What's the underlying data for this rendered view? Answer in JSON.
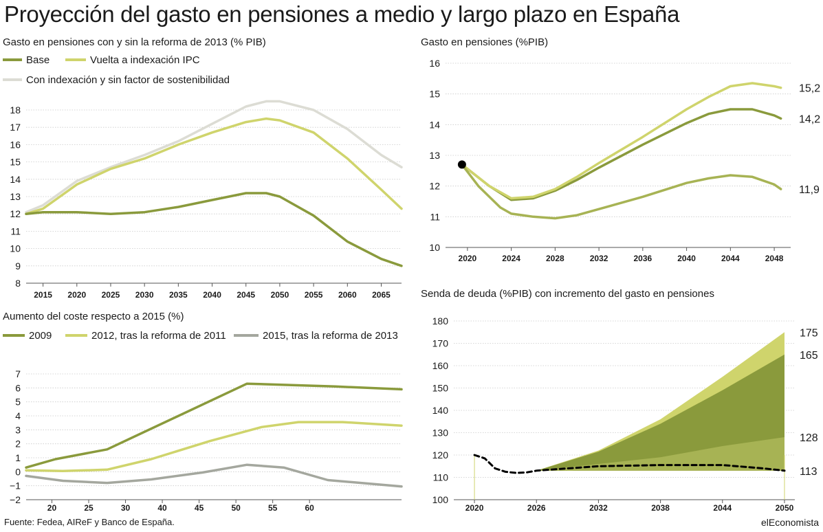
{
  "title": "Proyección del gasto en pensiones a medio y largo plazo en España",
  "source": "Fuente: Fedea, AIReF y Banco de España.",
  "brand": "elEconomista",
  "colors": {
    "dark": "#8a9a3c",
    "light": "#cfd46c",
    "grey": "#dcdcd4",
    "mid": "#a4a79e",
    "black": "#000000"
  },
  "chart_data": [
    {
      "id": "c1",
      "type": "line",
      "title": "Gasto en pensiones con y sin la reforma de 2013 (% PIB)",
      "ylim": [
        8,
        18
      ],
      "xlim": [
        2012.5,
        2068
      ],
      "yticks": [
        "8",
        "9",
        "10",
        "11",
        "12",
        "13",
        "14",
        "15",
        "16",
        "17",
        "18"
      ],
      "xticks": [
        "2015",
        "2020",
        "2025",
        "2030",
        "2035",
        "2040",
        "2045",
        "2050",
        "2055",
        "2060",
        "2065"
      ],
      "legend": [
        "Base",
        "Vuelta a indexación IPC",
        "Con indexación y sin factor de sostenibilidad"
      ],
      "series": [
        {
          "name": "Con indexación y sin factor de sostenibilidad",
          "color": "#dcdcd4",
          "points": [
            [
              2012.5,
              12.1
            ],
            [
              2015,
              12.5
            ],
            [
              2020,
              13.9
            ],
            [
              2025,
              14.7
            ],
            [
              2030,
              15.4
            ],
            [
              2035,
              16.2
            ],
            [
              2040,
              17.2
            ],
            [
              2045,
              18.2
            ],
            [
              2048,
              18.5
            ],
            [
              2050,
              18.5
            ],
            [
              2055,
              18.0
            ],
            [
              2060,
              16.9
            ],
            [
              2065,
              15.4
            ],
            [
              2068,
              14.7
            ]
          ]
        },
        {
          "name": "Vuelta a indexación IPC",
          "color": "#cfd46c",
          "points": [
            [
              2012.5,
              12.0
            ],
            [
              2015,
              12.3
            ],
            [
              2020,
              13.7
            ],
            [
              2025,
              14.6
            ],
            [
              2030,
              15.2
            ],
            [
              2035,
              16.0
            ],
            [
              2040,
              16.7
            ],
            [
              2045,
              17.3
            ],
            [
              2048,
              17.5
            ],
            [
              2050,
              17.4
            ],
            [
              2055,
              16.7
            ],
            [
              2060,
              15.2
            ],
            [
              2065,
              13.4
            ],
            [
              2068,
              12.3
            ]
          ]
        },
        {
          "name": "Base",
          "color": "#8a9a3c",
          "points": [
            [
              2012.5,
              12.0
            ],
            [
              2015,
              12.1
            ],
            [
              2020,
              12.1
            ],
            [
              2025,
              12.0
            ],
            [
              2030,
              12.1
            ],
            [
              2035,
              12.4
            ],
            [
              2040,
              12.8
            ],
            [
              2045,
              13.2
            ],
            [
              2048,
              13.2
            ],
            [
              2050,
              13.0
            ],
            [
              2055,
              11.9
            ],
            [
              2060,
              10.4
            ],
            [
              2065,
              9.4
            ],
            [
              2068,
              9.0
            ]
          ]
        }
      ]
    },
    {
      "id": "c2",
      "type": "line",
      "title": "Gasto en pensiones (%PIB)",
      "ylim": [
        10,
        16
      ],
      "xlim": [
        2018,
        2049.5
      ],
      "yticks": [
        "10",
        "11",
        "12",
        "13",
        "14",
        "15",
        "16"
      ],
      "xticks": [
        "2020",
        "2024",
        "2028",
        "2032",
        "2036",
        "2040",
        "2044",
        "2048"
      ],
      "end_labels": [
        "15,2",
        "14,2",
        "11,9"
      ],
      "start_point": [
        2019.5,
        12.7
      ],
      "series": [
        {
          "color": "#8a9a3c",
          "points": [
            [
              2019.5,
              12.7
            ],
            [
              2022,
              12.0
            ],
            [
              2024,
              11.55
            ],
            [
              2026,
              11.6
            ],
            [
              2028,
              11.85
            ],
            [
              2030,
              12.2
            ],
            [
              2032,
              12.6
            ],
            [
              2036,
              13.35
            ],
            [
              2040,
              14.05
            ],
            [
              2042,
              14.35
            ],
            [
              2044,
              14.5
            ],
            [
              2046,
              14.5
            ],
            [
              2048,
              14.3
            ],
            [
              2048.6,
              14.2
            ]
          ]
        },
        {
          "color": "#cfd46c",
          "points": [
            [
              2019.5,
              12.7
            ],
            [
              2022,
              12.0
            ],
            [
              2024,
              11.6
            ],
            [
              2026,
              11.65
            ],
            [
              2028,
              11.9
            ],
            [
              2030,
              12.3
            ],
            [
              2032,
              12.75
            ],
            [
              2036,
              13.6
            ],
            [
              2040,
              14.5
            ],
            [
              2042,
              14.9
            ],
            [
              2044,
              15.25
            ],
            [
              2046,
              15.35
            ],
            [
              2048,
              15.25
            ],
            [
              2048.6,
              15.2
            ]
          ]
        },
        {
          "color": "#a7b354",
          "points": [
            [
              2019.5,
              12.7
            ],
            [
              2021,
              12.0
            ],
            [
              2023,
              11.3
            ],
            [
              2024,
              11.1
            ],
            [
              2026,
              11.0
            ],
            [
              2028,
              10.95
            ],
            [
              2030,
              11.05
            ],
            [
              2032,
              11.25
            ],
            [
              2036,
              11.65
            ],
            [
              2040,
              12.1
            ],
            [
              2042,
              12.25
            ],
            [
              2044,
              12.35
            ],
            [
              2046,
              12.3
            ],
            [
              2048,
              12.05
            ],
            [
              2048.6,
              11.9
            ]
          ]
        }
      ]
    },
    {
      "id": "c3",
      "type": "line",
      "title": "Aumento del coste respecto a 2015 (%)",
      "ylim": [
        -2,
        7
      ],
      "xlim": [
        13,
        64
      ],
      "yticks": [
        "−2",
        "−1",
        "0",
        "1",
        "2",
        "3",
        "4",
        "5",
        "6",
        "7"
      ],
      "xticks": [
        "20",
        "25",
        "30",
        "40",
        "45",
        "50",
        "55",
        "60"
      ],
      "xtick_pos": [
        16.5,
        21.5,
        26.5,
        31.5,
        36.5,
        41.5,
        46.5,
        51.5
      ],
      "legend": [
        "2009",
        "2012, tras la reforma de 2011",
        "2015, tras la reforma de 2013"
      ],
      "series": [
        {
          "name": "2009",
          "color": "#8a9a3c",
          "points": [
            [
              13,
              0.3
            ],
            [
              17,
              0.9
            ],
            [
              24,
              1.6
            ],
            [
              43,
              6.3
            ],
            [
              55,
              6.1
            ],
            [
              64,
              5.9
            ]
          ]
        },
        {
          "name": "2012, tras la reforma de 2011",
          "color": "#cfd46c",
          "points": [
            [
              13,
              0.1
            ],
            [
              18,
              0.05
            ],
            [
              24,
              0.15
            ],
            [
              30,
              0.9
            ],
            [
              38,
              2.2
            ],
            [
              45,
              3.2
            ],
            [
              50,
              3.55
            ],
            [
              56,
              3.55
            ],
            [
              64,
              3.3
            ]
          ]
        },
        {
          "name": "2015, tras la reforma de 2013",
          "color": "#a4a79e",
          "points": [
            [
              13,
              -0.3
            ],
            [
              18,
              -0.65
            ],
            [
              24,
              -0.8
            ],
            [
              30,
              -0.55
            ],
            [
              37,
              -0.05
            ],
            [
              43,
              0.5
            ],
            [
              48,
              0.3
            ],
            [
              54,
              -0.6
            ],
            [
              64,
              -1.05
            ]
          ]
        }
      ]
    },
    {
      "id": "c4",
      "type": "area",
      "title": "Senda de deuda (%PIB) con incremento del gasto en pensiones",
      "ylim": [
        100,
        180
      ],
      "xlim": [
        2018,
        2051
      ],
      "yticks": [
        "100",
        "110",
        "120",
        "130",
        "140",
        "150",
        "160",
        "170",
        "180"
      ],
      "xticks": [
        "2020",
        "2026",
        "2032",
        "2038",
        "2044",
        "2050"
      ],
      "end_labels": [
        "175",
        "165",
        "128",
        "113"
      ],
      "areas": [
        {
          "color": "#cfd46c",
          "points": [
            [
              2026,
              113
            ],
            [
              2032,
              122
            ],
            [
              2038,
              136
            ],
            [
              2044,
              155
            ],
            [
              2050,
              175
            ]
          ]
        },
        {
          "color": "#8a9a3c",
          "points": [
            [
              2026,
              113
            ],
            [
              2032,
              121.5
            ],
            [
              2038,
              134
            ],
            [
              2044,
              149
            ],
            [
              2050,
              165
            ]
          ]
        },
        {
          "color": "#a7b354",
          "points": [
            [
              2026,
              113
            ],
            [
              2032,
              116
            ],
            [
              2038,
              119
            ],
            [
              2044,
              124
            ],
            [
              2050,
              128
            ]
          ]
        }
      ],
      "series": [
        {
          "color": "#000000",
          "dashed": true,
          "points": [
            [
              2020,
              120
            ],
            [
              2021,
              118.5
            ],
            [
              2022,
              114
            ],
            [
              2023,
              112.5
            ],
            [
              2024,
              112
            ],
            [
              2025,
              112.2
            ],
            [
              2026,
              113
            ],
            [
              2029,
              114
            ],
            [
              2032,
              115
            ],
            [
              2038,
              115.5
            ],
            [
              2044,
              115.5
            ],
            [
              2048,
              114
            ],
            [
              2050,
              113
            ]
          ]
        }
      ]
    }
  ]
}
